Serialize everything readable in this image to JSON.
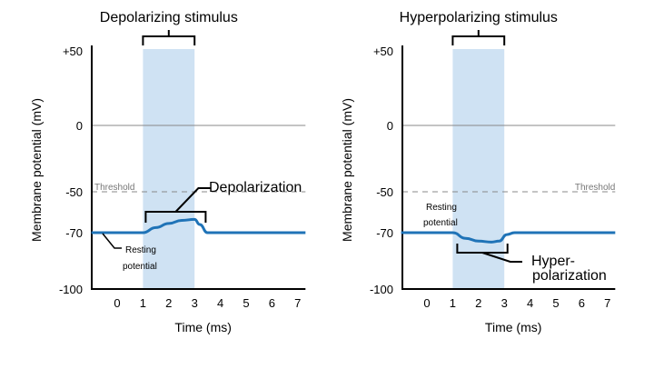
{
  "colors": {
    "curve": "#1f73b7",
    "stimulus": "#cfe2f3",
    "axis": "#000000",
    "zero_line": "#888888",
    "threshold": "#888888"
  },
  "chart_data": [
    {
      "type": "line",
      "title": "Depolarizing stimulus",
      "xlabel": "Time (ms)",
      "ylabel": "Membrane potential (mV)",
      "x_ticks": [
        "0",
        "1",
        "2",
        "3",
        "4",
        "5",
        "6",
        "7"
      ],
      "y_ticks": [
        "+50",
        "0",
        "-50",
        "-70",
        "-100"
      ],
      "y_tick_values": [
        50,
        0,
        -50,
        -70,
        -100
      ],
      "xlim": [
        -1,
        7.3
      ],
      "ylim": [
        -100,
        50
      ],
      "stimulus_interval": [
        1,
        3
      ],
      "threshold": {
        "value": -50,
        "label": "Threshold"
      },
      "series": [
        {
          "x": [
            -1,
            1,
            1.5,
            2,
            2.5,
            3,
            3.2,
            3.5,
            7.3
          ],
          "y": [
            -70,
            -70,
            -67.5,
            -65.5,
            -64,
            -63.5,
            -66,
            -70,
            -70
          ]
        }
      ],
      "annotations": [
        {
          "label": "Depolarization",
          "range": [
            1,
            3.5
          ]
        },
        {
          "label_lines": [
            "Resting",
            "potential"
          ]
        }
      ]
    },
    {
      "type": "line",
      "title": "Hyperpolarizing stimulus",
      "xlabel": "Time (ms)",
      "ylabel": "Membrane potential (mV)",
      "x_ticks": [
        "0",
        "1",
        "2",
        "3",
        "4",
        "5",
        "6",
        "7"
      ],
      "y_ticks": [
        "+50",
        "0",
        "-50",
        "-70",
        "-100"
      ],
      "y_tick_values": [
        50,
        0,
        -50,
        -70,
        -100
      ],
      "xlim": [
        -1,
        7.3
      ],
      "ylim": [
        -100,
        50
      ],
      "stimulus_interval": [
        1,
        3
      ],
      "threshold": {
        "value": -50,
        "label": "Threshold"
      },
      "series": [
        {
          "x": [
            -1,
            1,
            1.5,
            2,
            2.5,
            2.8,
            3.1,
            3.4,
            7.3
          ],
          "y": [
            -70,
            -70,
            -73,
            -74.5,
            -75,
            -74.5,
            -71,
            -70,
            -70
          ]
        }
      ],
      "annotations": [
        {
          "label_lines": [
            "Hyper-",
            "polarization"
          ],
          "range": [
            1,
            3.3
          ]
        },
        {
          "label_lines": [
            "Resting",
            "potential"
          ]
        }
      ]
    }
  ]
}
